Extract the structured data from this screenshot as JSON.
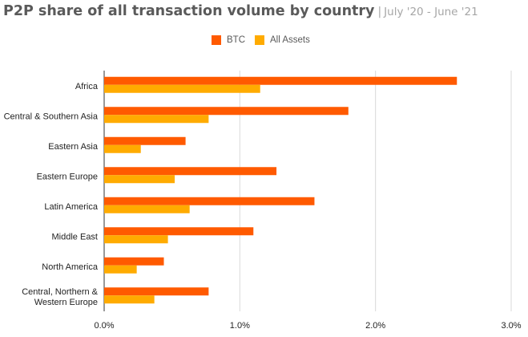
{
  "title": "P2P share of all transaction volume by country",
  "separator": "|",
  "subtitle": "July '20 - June '21",
  "colors": {
    "btc": "#ff5a00",
    "all_assets": "#ffab00",
    "grid": "#d9d9d9",
    "text": "#222222"
  },
  "chart_data": {
    "type": "bar",
    "orientation": "horizontal",
    "title": "P2P share of all transaction volume by country",
    "subtitle": "July '20 - June '21",
    "categories": [
      "Africa",
      "Central & Southern Asia",
      "Eastern Asia",
      "Eastern Europe",
      "Latin America",
      "Middle East",
      "North America",
      "Central, Northern & Western Europe"
    ],
    "category_lines": [
      [
        "Africa"
      ],
      [
        "Central & Southern Asia"
      ],
      [
        "Eastern Asia"
      ],
      [
        "Eastern Europe"
      ],
      [
        "Latin America"
      ],
      [
        "Middle East"
      ],
      [
        "North America"
      ],
      [
        "Central, Northern &",
        "Western Europe"
      ]
    ],
    "series": [
      {
        "name": "BTC",
        "values": [
          2.6,
          1.8,
          0.6,
          1.27,
          1.55,
          1.1,
          0.44,
          0.77
        ]
      },
      {
        "name": "All Assets",
        "values": [
          1.15,
          0.77,
          0.27,
          0.52,
          0.63,
          0.47,
          0.24,
          0.37
        ]
      }
    ],
    "xlim": [
      0,
      3.0
    ],
    "x_ticks": [
      "0.0%",
      "1.0%",
      "2.0%",
      "3.0%"
    ],
    "x_tick_values": [
      0,
      1,
      2,
      3
    ],
    "grid": true,
    "legend_position": "top"
  }
}
